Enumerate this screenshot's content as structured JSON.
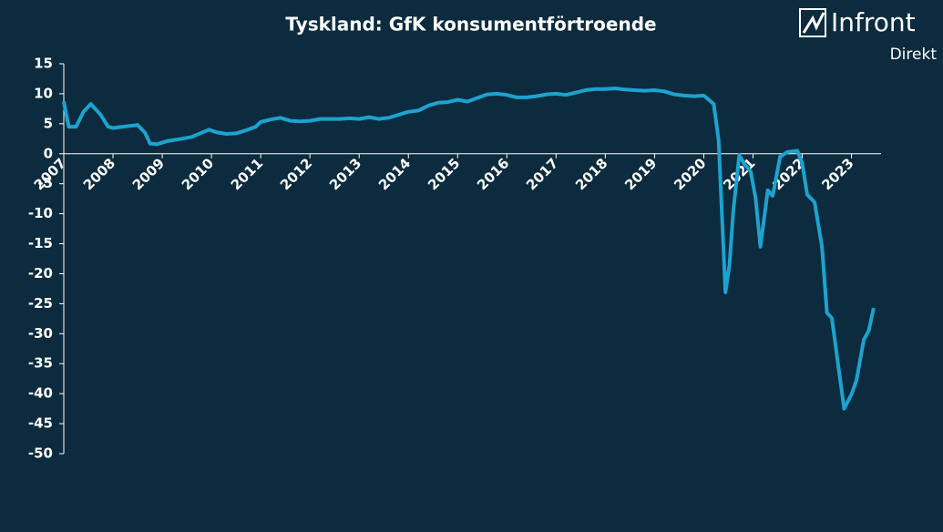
{
  "chart_data": {
    "type": "line",
    "title": "Tyskland: GfK konsumentförtroende",
    "logo": {
      "name": "Infront",
      "sub": "Direkt"
    },
    "x": [
      2007.0,
      2007.1,
      2007.25,
      2007.4,
      2007.55,
      2007.75,
      2007.9,
      2008.0,
      2008.2,
      2008.4,
      2008.5,
      2008.65,
      2008.75,
      2008.9,
      2009.1,
      2009.4,
      2009.6,
      2009.8,
      2009.95,
      2010.1,
      2010.3,
      2010.5,
      2010.7,
      2010.9,
      2011.0,
      2011.2,
      2011.4,
      2011.6,
      2011.8,
      2012.0,
      2012.2,
      2012.4,
      2012.6,
      2012.8,
      2013.0,
      2013.2,
      2013.4,
      2013.6,
      2013.8,
      2014.0,
      2014.2,
      2014.4,
      2014.6,
      2014.8,
      2015.0,
      2015.2,
      2015.4,
      2015.6,
      2015.8,
      2016.0,
      2016.2,
      2016.4,
      2016.6,
      2016.8,
      2017.0,
      2017.2,
      2017.4,
      2017.6,
      2017.8,
      2018.0,
      2018.2,
      2018.4,
      2018.6,
      2018.8,
      2019.0,
      2019.2,
      2019.4,
      2019.6,
      2019.8,
      2020.0,
      2020.2,
      2020.3,
      2020.44,
      2020.52,
      2020.6,
      2020.72,
      2020.82,
      2020.95,
      2021.05,
      2021.15,
      2021.3,
      2021.4,
      2021.55,
      2021.7,
      2021.9,
      2022.0,
      2022.1,
      2022.25,
      2022.4,
      2022.5,
      2022.6,
      2022.75,
      2022.85,
      2023.0,
      2023.1,
      2023.25,
      2023.35,
      2023.45
    ],
    "series": [
      {
        "name": "GfK",
        "color": "#1ca3cf",
        "values": [
          8.7,
          4.5,
          4.5,
          7,
          8.3,
          6.5,
          4.5,
          4.3,
          4.5,
          4.7,
          4.8,
          3.5,
          1.7,
          1.6,
          2.1,
          2.5,
          2.8,
          3.5,
          4.0,
          3.6,
          3.3,
          3.4,
          3.9,
          4.5,
          5.3,
          5.7,
          6.0,
          5.5,
          5.4,
          5.5,
          5.8,
          5.8,
          5.8,
          5.9,
          5.8,
          6.1,
          5.8,
          6.0,
          6.5,
          7.0,
          7.2,
          8.0,
          8.5,
          8.6,
          9.0,
          8.7,
          9.3,
          9.9,
          10.0,
          9.8,
          9.4,
          9.4,
          9.6,
          9.9,
          10.0,
          9.8,
          10.2,
          10.6,
          10.8,
          10.8,
          10.9,
          10.7,
          10.6,
          10.5,
          10.6,
          10.4,
          9.9,
          9.7,
          9.6,
          9.7,
          8.3,
          2.3,
          -23.1,
          -18.6,
          -9.4,
          -0.2,
          -1.7,
          -2.9,
          -7.3,
          -15.5,
          -6.1,
          -7.0,
          -0.5,
          0.3,
          0.5,
          -1.6,
          -6.8,
          -8.1,
          -15.5,
          -26.5,
          -27.4,
          -36.5,
          -42.5,
          -40.1,
          -37.8,
          -31.0,
          -29.5,
          -25.7
        ]
      }
    ],
    "xlim": [
      2007,
      2023.6
    ],
    "xticks": [
      2007,
      2008,
      2009,
      2010,
      2011,
      2012,
      2013,
      2014,
      2015,
      2016,
      2017,
      2018,
      2019,
      2020,
      2021,
      2022,
      2023
    ],
    "ylim": [
      -50,
      15
    ],
    "yticks": [
      15,
      10,
      5,
      0,
      -5,
      -10,
      -15,
      -20,
      -25,
      -30,
      -35,
      -40,
      -45,
      -50
    ],
    "grid": false
  }
}
